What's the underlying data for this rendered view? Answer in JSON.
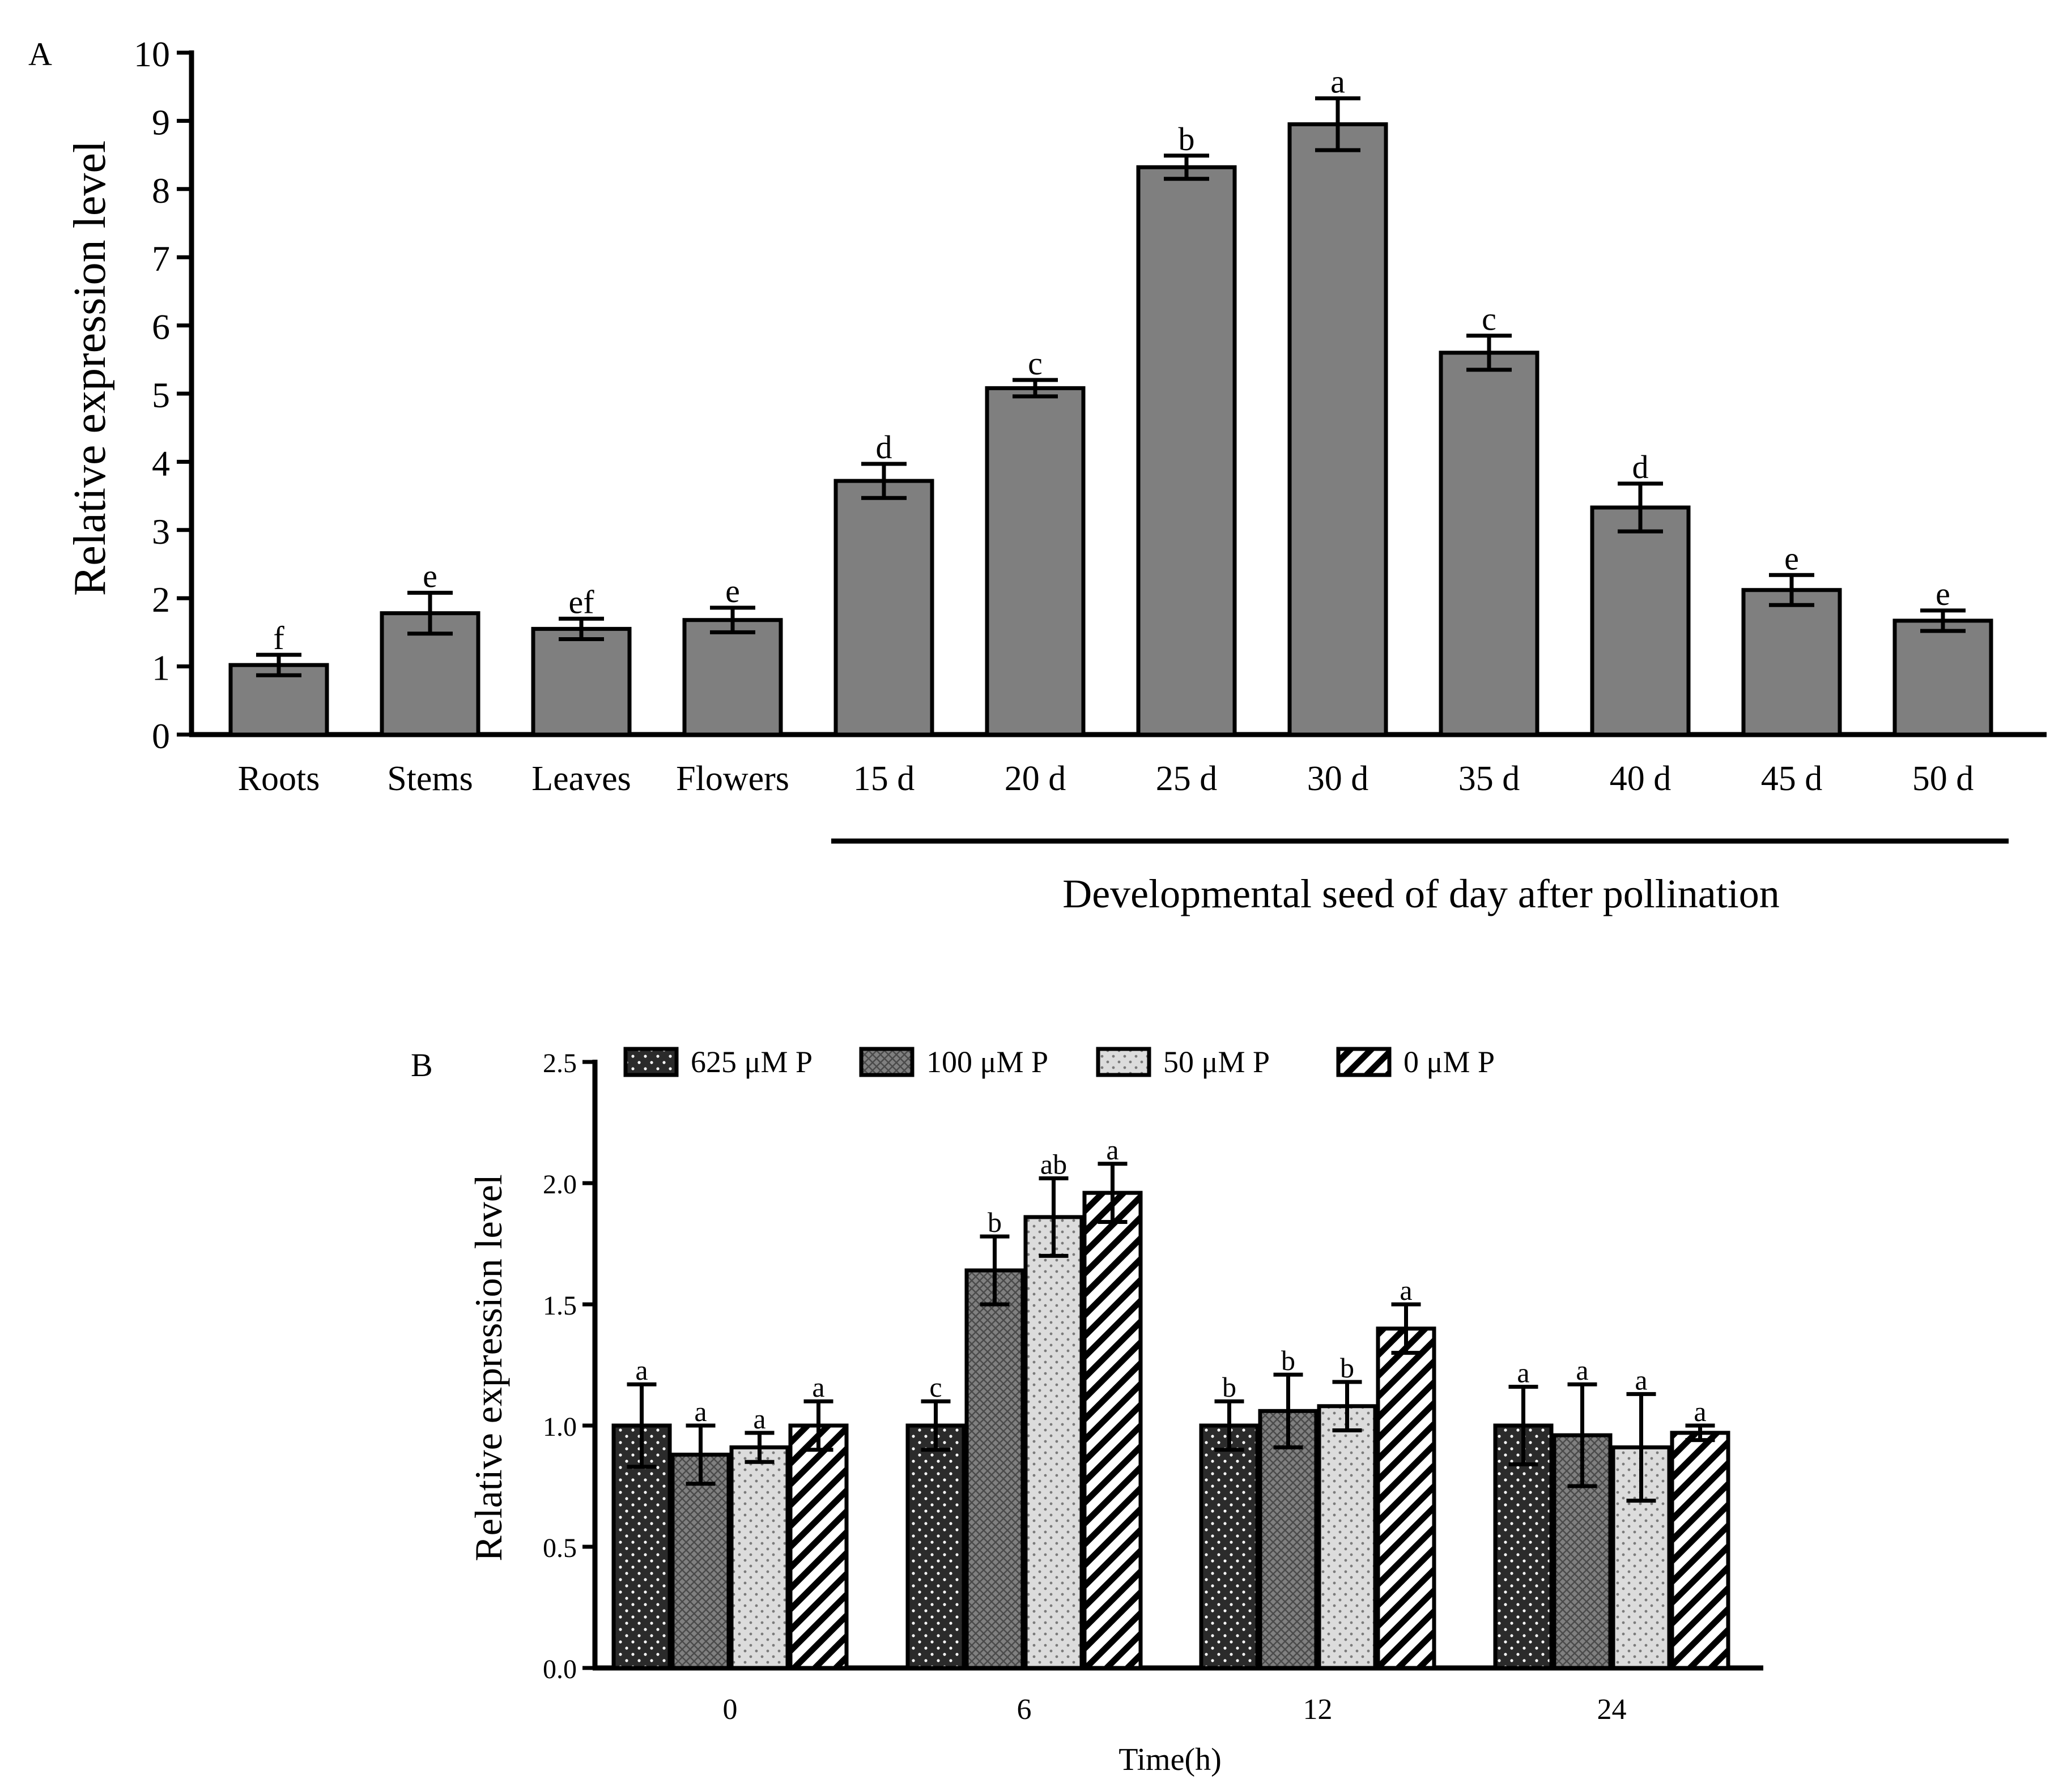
{
  "chart_data": [
    {
      "panel": "A",
      "type": "bar",
      "ylabel": "Relative expression level",
      "ylim": [
        0,
        10
      ],
      "yticks": [
        "0",
        "1",
        "2",
        "3",
        "4",
        "5",
        "6",
        "7",
        "8",
        "9",
        "10"
      ],
      "categories": [
        "Roots",
        "Stems",
        "Leaves",
        "Flowers",
        "15 d",
        "20 d",
        "25 d",
        "30 d",
        "35 d",
        "40 d",
        "45 d",
        "50 d"
      ],
      "values": [
        1.02,
        1.78,
        1.55,
        1.68,
        3.72,
        5.08,
        8.32,
        8.95,
        5.6,
        3.33,
        2.12,
        1.67
      ],
      "errors": [
        0.15,
        0.3,
        0.15,
        0.18,
        0.25,
        0.12,
        0.17,
        0.38,
        0.25,
        0.35,
        0.22,
        0.15
      ],
      "significance": [
        "f",
        "e",
        "ef",
        "e",
        "d",
        "c",
        "b",
        "a",
        "c",
        "d",
        "e",
        "e"
      ],
      "group_label": "Developmental seed of day after pollination",
      "bar_color": "#7f7f7f"
    },
    {
      "panel": "B",
      "type": "bar",
      "ylabel": "Relative expression level",
      "xlabel": "Time(h)",
      "ylim": [
        0,
        2.5
      ],
      "yticks": [
        "0.0",
        "0.5",
        "1.0",
        "1.5",
        "2.0",
        "2.5"
      ],
      "categories": [
        "0",
        "6",
        "12",
        "24"
      ],
      "series": [
        {
          "name": "625 μM P",
          "values": [
            1.0,
            1.0,
            1.0,
            1.0
          ],
          "errors": [
            0.17,
            0.1,
            0.1,
            0.16
          ],
          "significance": [
            "a",
            "c",
            "b",
            "a"
          ],
          "pattern": "dots-dark",
          "color": "#2b2b2b"
        },
        {
          "name": "100 μM P",
          "values": [
            0.88,
            1.64,
            1.06,
            0.96
          ],
          "errors": [
            0.12,
            0.14,
            0.15,
            0.21
          ],
          "significance": [
            "a",
            "b",
            "b",
            "a"
          ],
          "pattern": "crosshatch-grey",
          "color": "#7a7a7a"
        },
        {
          "name": "50 μM P",
          "values": [
            0.91,
            1.86,
            1.08,
            0.91
          ],
          "errors": [
            0.06,
            0.16,
            0.1,
            0.22
          ],
          "significance": [
            "a",
            "ab",
            "b",
            "a"
          ],
          "pattern": "dots-light",
          "color": "#d9d9d9"
        },
        {
          "name": "0 μM P",
          "values": [
            1.0,
            1.96,
            1.4,
            0.97
          ],
          "errors": [
            0.1,
            0.12,
            0.1,
            0.03
          ],
          "significance": [
            "a",
            "a",
            "a",
            "a"
          ],
          "pattern": "diagonal-stripes",
          "color": "#ffffff"
        }
      ]
    }
  ]
}
